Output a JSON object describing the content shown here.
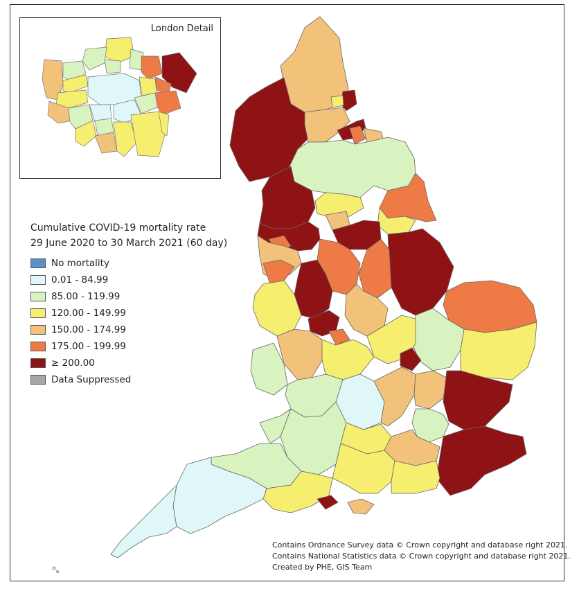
{
  "legend": {
    "title_line1": "Cumulative COVID-19 mortality rate",
    "title_line2": "29 June 2020 to 30 March 2021 (60 day)",
    "items": [
      {
        "label": "No mortality",
        "color": "#5b8fc9"
      },
      {
        "label": "0.01 - 84.99",
        "color": "#e0f7fa"
      },
      {
        "label": "85.00 - 119.99",
        "color": "#d8f2c0"
      },
      {
        "label": "120.00 - 149.99",
        "color": "#f6ee6e"
      },
      {
        "label": "150.00 - 174.99",
        "color": "#f2c27b"
      },
      {
        "label": "175.00 - 199.99",
        "color": "#ee7b45"
      },
      {
        "label": "≥ 200.00",
        "color": "#8f1214"
      },
      {
        "label": "Data Suppressed",
        "color": "#a6a6a6"
      }
    ]
  },
  "inset": {
    "title": "London Detail"
  },
  "credits": {
    "line1": "Contains Ordnance Survey data © Crown copyright and database right 2021.",
    "line2": "Contains National Statistics data © Crown copyright and database right 2021.",
    "line3": "Created by PHE, GIS Team"
  }
}
